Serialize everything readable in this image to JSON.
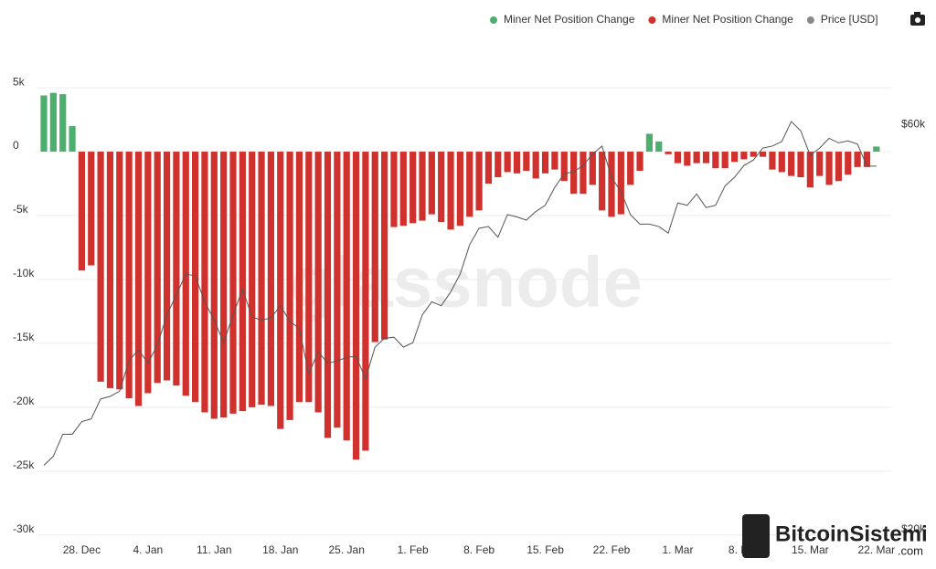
{
  "chart_data": {
    "type": "bar",
    "categories": [
      null,
      null,
      null,
      null,
      "28. Dec",
      null,
      null,
      null,
      null,
      null,
      null,
      "4. Jan",
      null,
      null,
      null,
      null,
      null,
      null,
      "11. Jan",
      null,
      null,
      null,
      null,
      null,
      null,
      "18. Jan",
      null,
      null,
      null,
      null,
      null,
      null,
      "25. Jan",
      null,
      null,
      null,
      null,
      null,
      null,
      "1. Feb",
      null,
      null,
      null,
      null,
      null,
      null,
      "8. Feb",
      null,
      null,
      null,
      null,
      null,
      null,
      "15. Feb",
      null,
      null,
      null,
      null,
      null,
      null,
      "22. Feb",
      null,
      null,
      null,
      null,
      null,
      null,
      "1. Mar",
      null,
      null,
      null,
      null,
      null,
      null,
      "8. Mar",
      null,
      null,
      null,
      null,
      null,
      null,
      "15. Mar",
      null,
      null,
      null,
      null,
      null,
      null,
      "22. Mar"
    ],
    "series": [
      {
        "name": "Miner Net Position Change",
        "color": "#4caf6e",
        "values": [
          4400,
          4600,
          4500,
          2000,
          null,
          null,
          null,
          null,
          null,
          null,
          null,
          null,
          null,
          null,
          null,
          null,
          null,
          null,
          null,
          null,
          null,
          null,
          null,
          null,
          null,
          null,
          null,
          null,
          null,
          null,
          null,
          null,
          null,
          null,
          null,
          null,
          null,
          null,
          null,
          null,
          null,
          null,
          null,
          null,
          null,
          null,
          null,
          null,
          null,
          null,
          null,
          null,
          null,
          null,
          null,
          null,
          null,
          null,
          null,
          null,
          null,
          null,
          null,
          null,
          1400,
          800,
          null,
          null,
          null,
          null,
          null,
          null,
          null,
          null,
          null,
          null,
          null,
          null,
          null,
          null,
          null,
          null,
          null,
          null,
          null,
          null,
          null,
          null,
          400
        ]
      },
      {
        "name": "Miner Net Position Change",
        "color": "#d0312d",
        "values": [
          null,
          null,
          null,
          null,
          -9300,
          -8900,
          -18000,
          -18500,
          -18600,
          -19300,
          -19900,
          -18900,
          -18100,
          -17900,
          -18300,
          -19100,
          -19600,
          -20400,
          -20900,
          -20800,
          -20500,
          -20300,
          -20000,
          -19800,
          -19900,
          -21700,
          -21000,
          -19600,
          -19600,
          -20400,
          -22400,
          -21600,
          -22600,
          -24100,
          -23400,
          -14900,
          -14700,
          -5900,
          -5800,
          -5600,
          -5400,
          -4900,
          -5500,
          -6100,
          -5800,
          -5100,
          -4600,
          -2500,
          -2000,
          -1600,
          -1700,
          -1500,
          -2100,
          -1700,
          -1400,
          -2300,
          -3300,
          -3300,
          -2600,
          -4600,
          -5100,
          -4900,
          -2600,
          -1500,
          null,
          null,
          -200,
          -900,
          -1100,
          -900,
          -900,
          -1300,
          -1300,
          -800,
          -600,
          -400,
          -400,
          -1400,
          -1600,
          -1900,
          -2000,
          -2800,
          -1900,
          -2600,
          -2300,
          -1800,
          -1200,
          -1200,
          null
        ]
      },
      {
        "name": "Price [USD]",
        "color": "#555555",
        "axis": "y2",
        "values": [
          23800,
          24400,
          25900,
          25900,
          26800,
          27000,
          28500,
          28700,
          29100,
          31600,
          32600,
          31400,
          33000,
          35800,
          37800,
          40000,
          39800,
          37100,
          35300,
          33200,
          35800,
          38400,
          35600,
          35300,
          35500,
          36700,
          35200,
          34500,
          30500,
          32400,
          31400,
          31600,
          31900,
          32000,
          30100,
          32800,
          33600,
          33700,
          32800,
          33200,
          35800,
          37100,
          36700,
          38100,
          40000,
          43300,
          45300,
          45500,
          44200,
          47000,
          46700,
          46300,
          47400,
          48200,
          50600,
          52500,
          52800,
          53700,
          55400,
          56600,
          52000,
          50000,
          47000,
          45800,
          45800,
          45500,
          44700,
          48500,
          48200,
          49700,
          47900,
          48200,
          50800,
          52000,
          53700,
          54500,
          56300,
          56600,
          57300,
          60500,
          59000,
          55200,
          56300,
          57800,
          57100,
          57400,
          56900,
          53600,
          53600
        ]
      }
    ],
    "ylim": [
      -30300,
      6150
    ],
    "yticks": [
      {
        "value": 5000,
        "label": "5k"
      },
      0,
      {
        "value": -5000,
        "label": "-5k"
      },
      {
        "value": -10000,
        "label": "-10k"
      },
      {
        "value": -15000,
        "label": "-15k"
      },
      {
        "value": -20000,
        "label": "-20k"
      },
      {
        "value": -25000,
        "label": "-25k"
      },
      {
        "value": -30000,
        "label": "-30k"
      }
    ],
    "y2lim": [
      19500,
      69000
    ],
    "y2ticks": [
      {
        "value": 20000,
        "label": "$20k"
      },
      {
        "value": 60000,
        "label": "$60k"
      }
    ],
    "y2log": true,
    "grid": true,
    "legend": "top-right",
    "watermark": "glassnode",
    "credit": "BitcoinSistemi",
    "credit_sub": ".com"
  }
}
